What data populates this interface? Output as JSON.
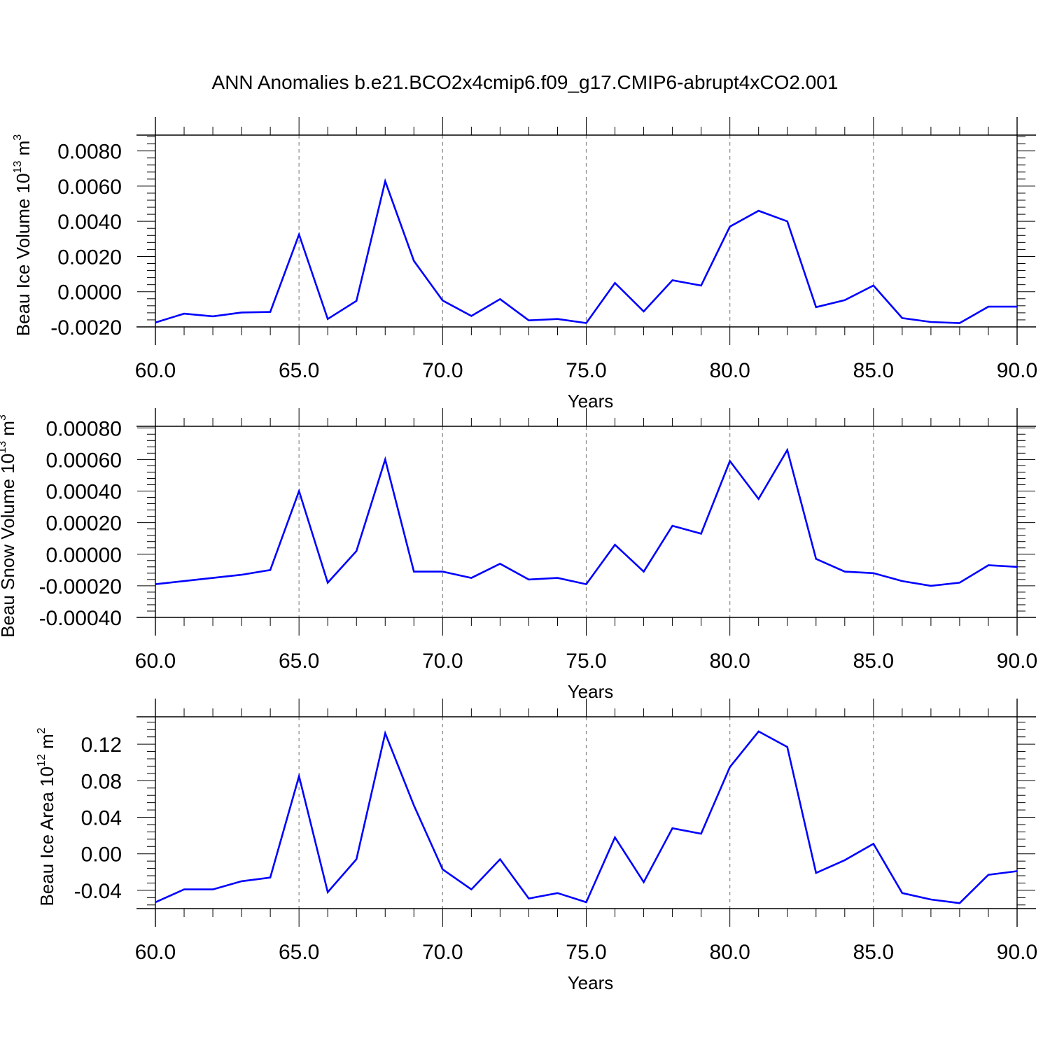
{
  "title": "ANN Anomalies b.e21.BCO2x4cmip6.f09_g17.CMIP6-abrupt4xCO2.001",
  "line_color": "#0000ff",
  "chart_data": [
    {
      "type": "line",
      "xlabel": "Years",
      "ylabel": "Beau Ice Volume 10",
      "ylabel_exp": "13",
      "ylabel_unit": "m",
      "ylabel_unit_exp": "3",
      "xlim": [
        60,
        90
      ],
      "ylim": [
        -0.002,
        0.0089
      ],
      "xticks": [
        60,
        65,
        70,
        75,
        80,
        85,
        90
      ],
      "xtick_labels": [
        "60.0",
        "65.0",
        "70.0",
        "75.0",
        "80.0",
        "85.0",
        "90.0"
      ],
      "yticks": [
        -0.002,
        0.0,
        0.002,
        0.004,
        0.006,
        0.008
      ],
      "ytick_labels": [
        "-0.0020",
        "0.0000",
        "0.0020",
        "0.0040",
        "0.0060",
        "0.0080"
      ],
      "x": [
        60,
        61,
        62,
        63,
        64,
        65,
        66,
        67,
        68,
        69,
        70,
        71,
        72,
        73,
        74,
        75,
        76,
        77,
        78,
        79,
        80,
        81,
        82,
        83,
        84,
        85,
        86,
        87,
        88,
        89,
        90
      ],
      "series": [
        {
          "values": [
            -0.00175,
            -0.00125,
            -0.0014,
            -0.00118,
            -0.00115,
            0.00325,
            -0.00155,
            -0.00052,
            0.00628,
            0.00175,
            -0.0005,
            -0.00138,
            -0.00042,
            -0.00163,
            -0.00155,
            -0.00178,
            0.0005,
            -0.00112,
            0.00065,
            0.00035,
            0.0037,
            0.0046,
            0.004,
            -0.00088,
            -0.00048,
            0.00035,
            -0.0015,
            -0.00172,
            -0.00178,
            -0.00085,
            -0.00085
          ]
        }
      ]
    },
    {
      "type": "line",
      "xlabel": "Years",
      "ylabel": "Beau Snow Volume 10",
      "ylabel_exp": "13",
      "ylabel_unit": "m",
      "ylabel_unit_exp": "3",
      "xlim": [
        60,
        90
      ],
      "ylim": [
        -0.0004,
        0.00081
      ],
      "xticks": [
        60,
        65,
        70,
        75,
        80,
        85,
        90
      ],
      "xtick_labels": [
        "60.0",
        "65.0",
        "70.0",
        "75.0",
        "80.0",
        "85.0",
        "90.0"
      ],
      "yticks": [
        -0.0004,
        -0.0002,
        0.0,
        0.0002,
        0.0004,
        0.0006,
        0.0008
      ],
      "ytick_labels": [
        "-0.00040",
        "-0.00020",
        "0.00000",
        "0.00020",
        "0.00040",
        "0.00060",
        "0.00080"
      ],
      "x": [
        60,
        61,
        62,
        63,
        64,
        65,
        66,
        67,
        68,
        69,
        70,
        71,
        72,
        73,
        74,
        75,
        76,
        77,
        78,
        79,
        80,
        81,
        82,
        83,
        84,
        85,
        86,
        87,
        88,
        89,
        90
      ],
      "series": [
        {
          "values": [
            -0.00019,
            -0.00017,
            -0.00015,
            -0.00013,
            -0.0001,
            0.0004,
            -0.00018,
            2e-05,
            0.0006,
            -0.00011,
            -0.00011,
            -0.00015,
            -6e-05,
            -0.00016,
            -0.00015,
            -0.00019,
            6e-05,
            -0.00011,
            0.00018,
            0.00013,
            0.00059,
            0.00035,
            0.00066,
            -3e-05,
            -0.00011,
            -0.00012,
            -0.00017,
            -0.0002,
            -0.00018,
            -7e-05,
            -8e-05
          ]
        }
      ]
    },
    {
      "type": "line",
      "xlabel": "Years",
      "ylabel": "Beau Ice Area 10",
      "ylabel_exp": "12",
      "ylabel_unit": "m",
      "ylabel_unit_exp": "2",
      "xlim": [
        60,
        90
      ],
      "ylim": [
        -0.06,
        0.15
      ],
      "xticks": [
        60,
        65,
        70,
        75,
        80,
        85,
        90
      ],
      "xtick_labels": [
        "60.0",
        "65.0",
        "70.0",
        "75.0",
        "80.0",
        "85.0",
        "90.0"
      ],
      "yticks": [
        -0.04,
        0.0,
        0.04,
        0.08,
        0.12
      ],
      "ytick_labels": [
        "-0.04",
        "0.00",
        "0.04",
        "0.08",
        "0.12"
      ],
      "x": [
        60,
        61,
        62,
        63,
        64,
        65,
        66,
        67,
        68,
        69,
        70,
        71,
        72,
        73,
        74,
        75,
        76,
        77,
        78,
        79,
        80,
        81,
        82,
        83,
        84,
        85,
        86,
        87,
        88,
        89,
        90
      ],
      "series": [
        {
          "values": [
            -0.053,
            -0.039,
            -0.039,
            -0.03,
            -0.026,
            0.085,
            -0.042,
            -0.006,
            0.132,
            0.053,
            -0.017,
            -0.039,
            -0.006,
            -0.049,
            -0.043,
            -0.053,
            0.018,
            -0.031,
            0.028,
            0.022,
            0.095,
            0.134,
            0.117,
            -0.021,
            -0.007,
            0.011,
            -0.043,
            -0.05,
            -0.054,
            -0.023,
            -0.019
          ]
        }
      ]
    }
  ]
}
